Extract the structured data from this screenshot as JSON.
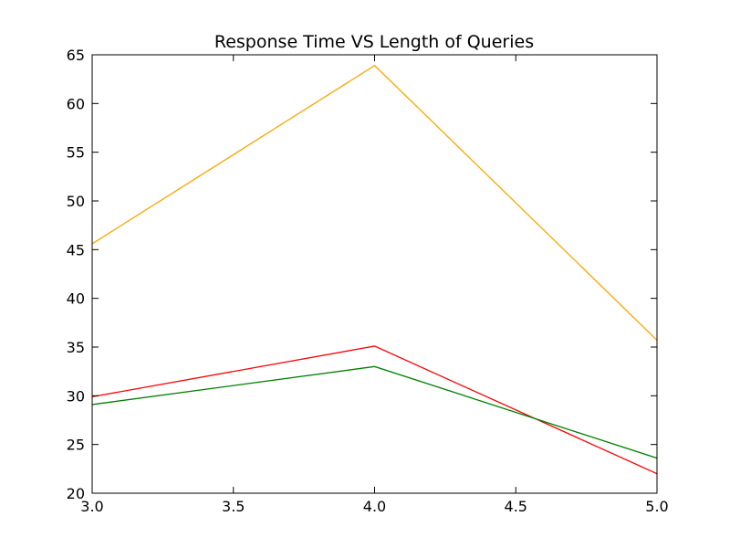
{
  "chart_data": {
    "type": "line",
    "title": "Response Time VS Length of Queries",
    "xlabel": "",
    "ylabel": "",
    "x": [
      3.0,
      4.0,
      5.0
    ],
    "xlim": [
      3.0,
      5.0
    ],
    "ylim": [
      20,
      65
    ],
    "xticks": [
      3.0,
      3.5,
      4.0,
      4.5,
      5.0
    ],
    "xtick_labels": [
      "3.0",
      "3.5",
      "4.0",
      "4.5",
      "5.0"
    ],
    "yticks": [
      20,
      25,
      30,
      35,
      40,
      45,
      50,
      55,
      60,
      65
    ],
    "ytick_labels": [
      "20",
      "25",
      "30",
      "35",
      "40",
      "45",
      "50",
      "55",
      "60",
      "65"
    ],
    "grid": false,
    "legend": "none",
    "series": [
      {
        "color": "#ffa500",
        "values": [
          45.6,
          63.9,
          35.7
        ]
      },
      {
        "color": "#ff0000",
        "values": [
          29.9,
          35.1,
          22.0
        ]
      },
      {
        "color": "#008000",
        "values": [
          29.1,
          33.0,
          23.6
        ]
      }
    ]
  }
}
